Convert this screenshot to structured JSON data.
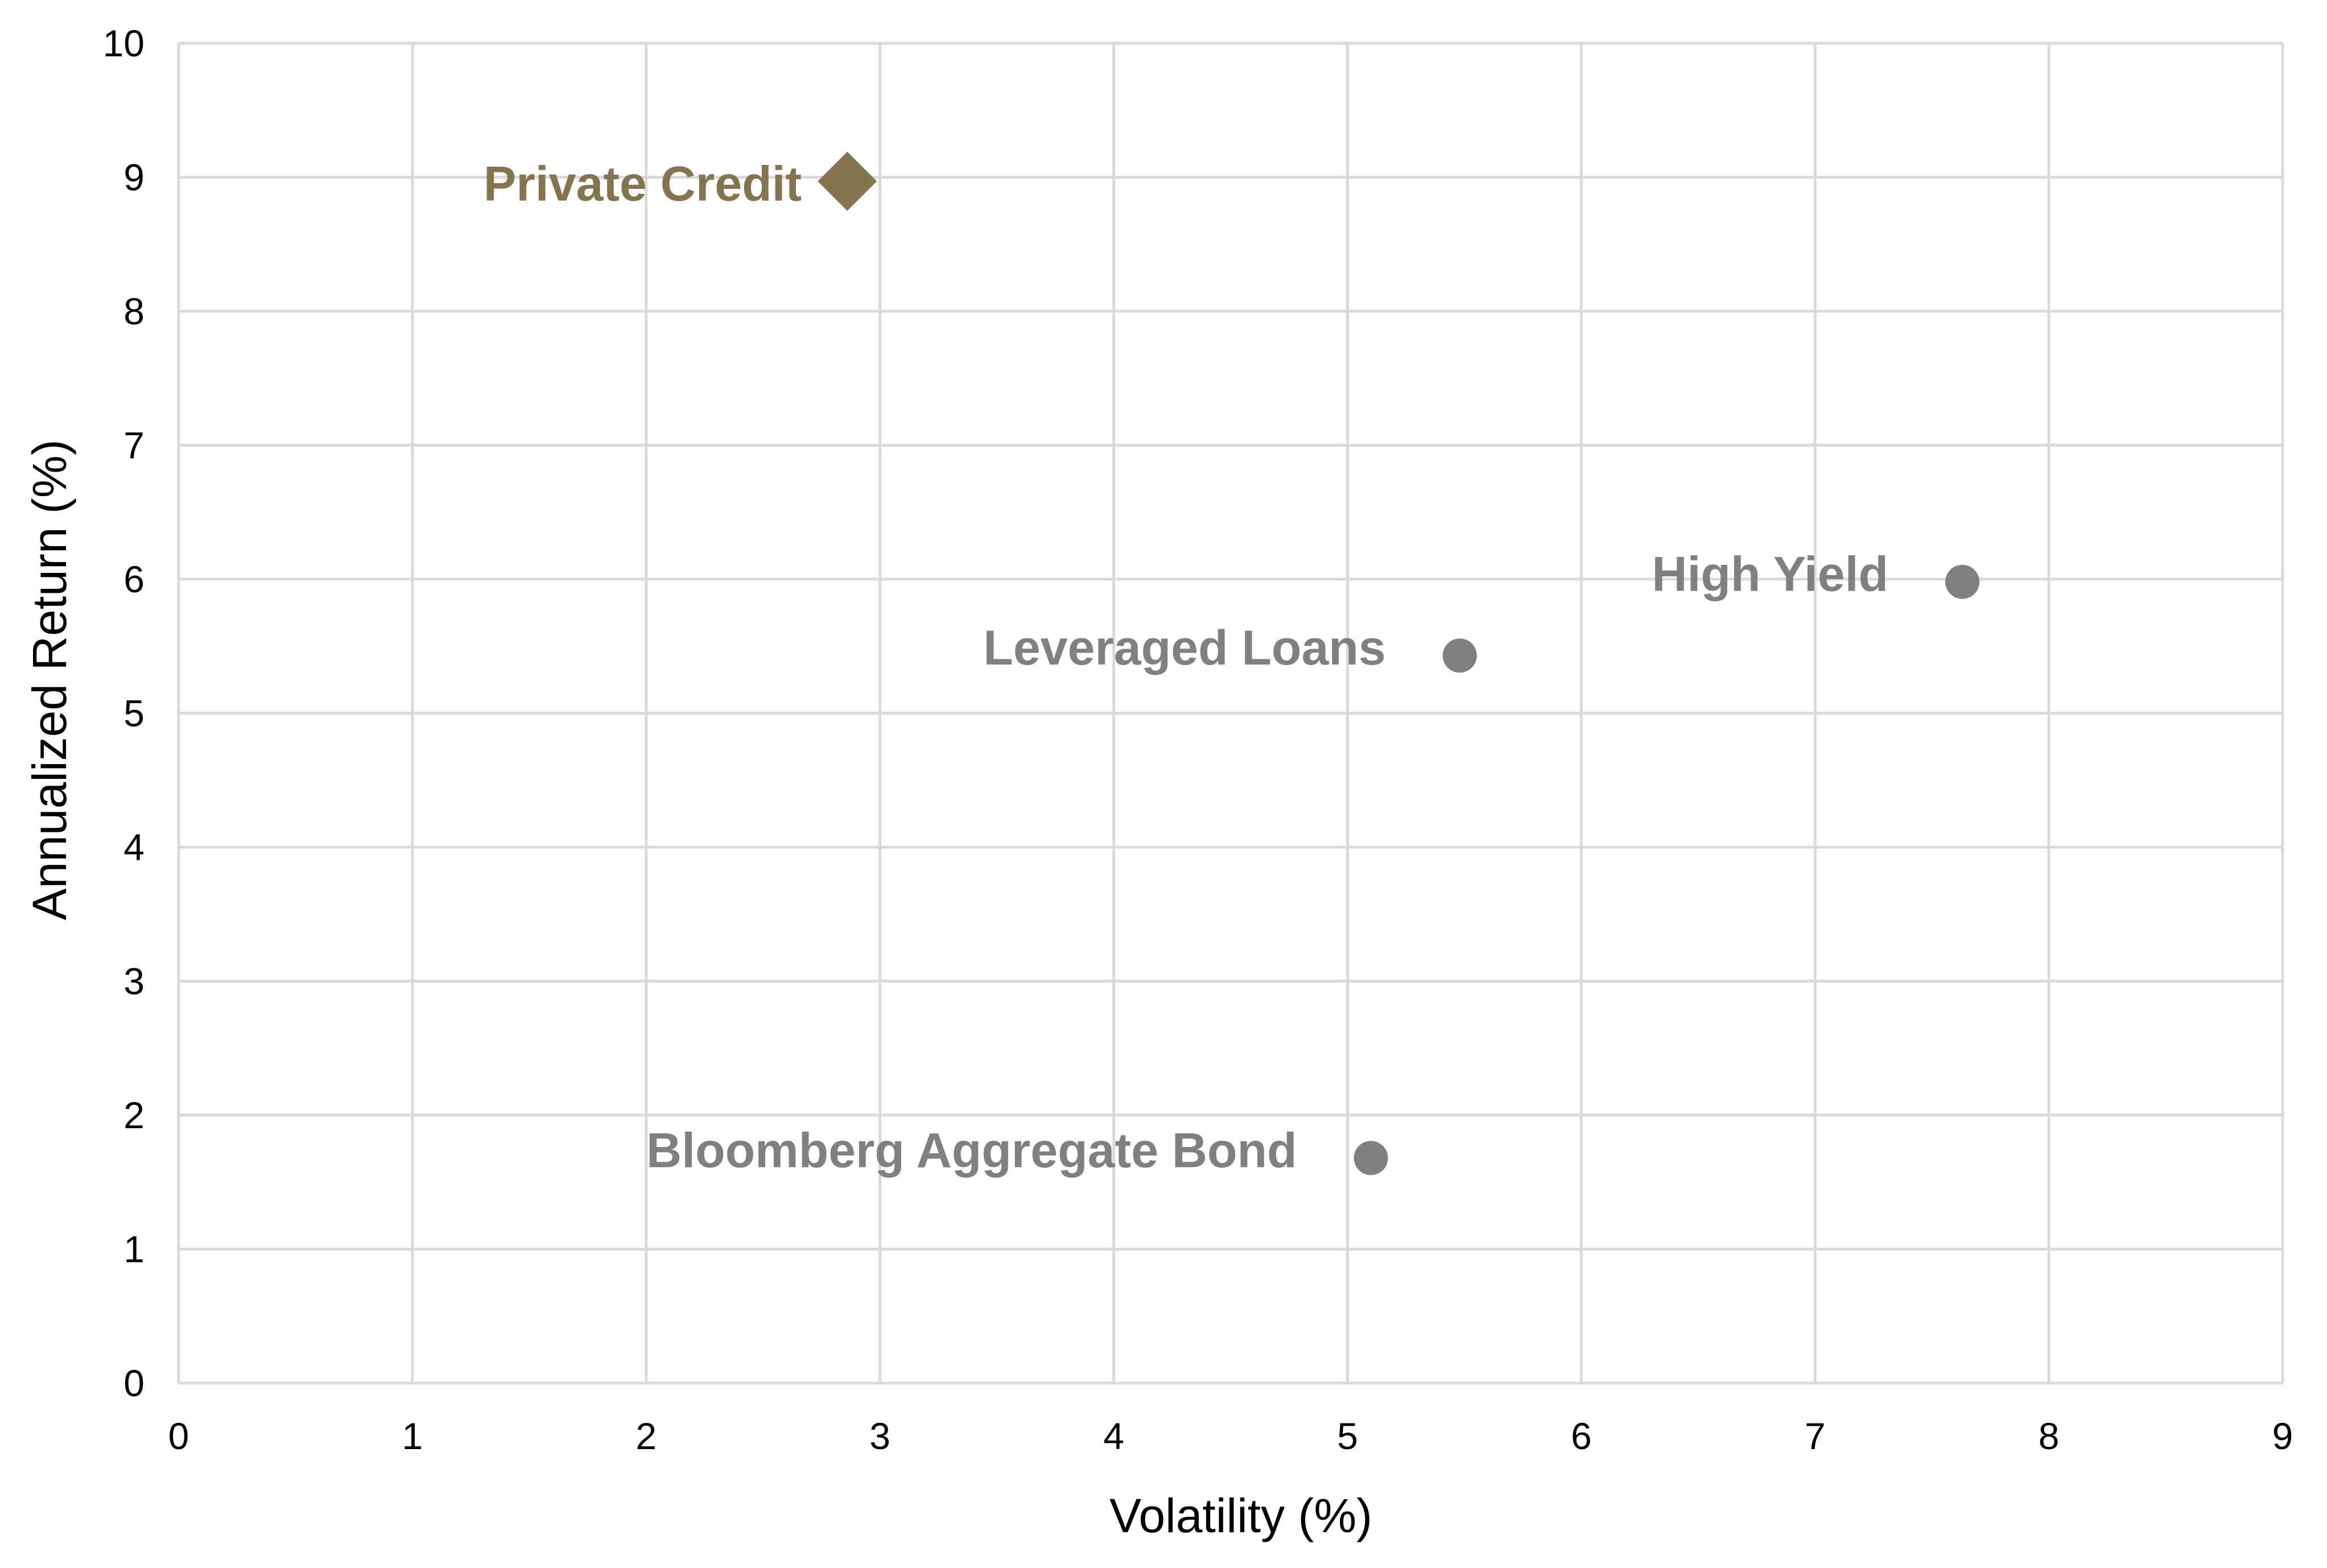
{
  "chart_data": {
    "type": "scatter",
    "xlabel": "Volatility (%)",
    "ylabel": "Annualized Return (%)",
    "xlim": [
      0,
      9
    ],
    "ylim": [
      0,
      10
    ],
    "xticks": [
      0,
      1,
      2,
      3,
      4,
      5,
      6,
      7,
      8,
      9
    ],
    "yticks": [
      0,
      1,
      2,
      3,
      4,
      5,
      6,
      7,
      8,
      9,
      10
    ],
    "grid": true,
    "points": [
      {
        "label": "Private Credit",
        "x": 2.86,
        "y": 8.97,
        "marker": "diamond",
        "color": "#85754e",
        "highlight": true
      },
      {
        "label": "High Yield",
        "x": 7.63,
        "y": 5.98,
        "marker": "circle",
        "color": "#808080",
        "highlight": false
      },
      {
        "label": "Leveraged Loans",
        "x": 5.48,
        "y": 5.43,
        "marker": "circle",
        "color": "#808080",
        "highlight": false
      },
      {
        "label": "Bloomberg Aggregate Bond",
        "x": 5.1,
        "y": 1.68,
        "marker": "circle",
        "color": "#808080",
        "highlight": false
      }
    ]
  }
}
